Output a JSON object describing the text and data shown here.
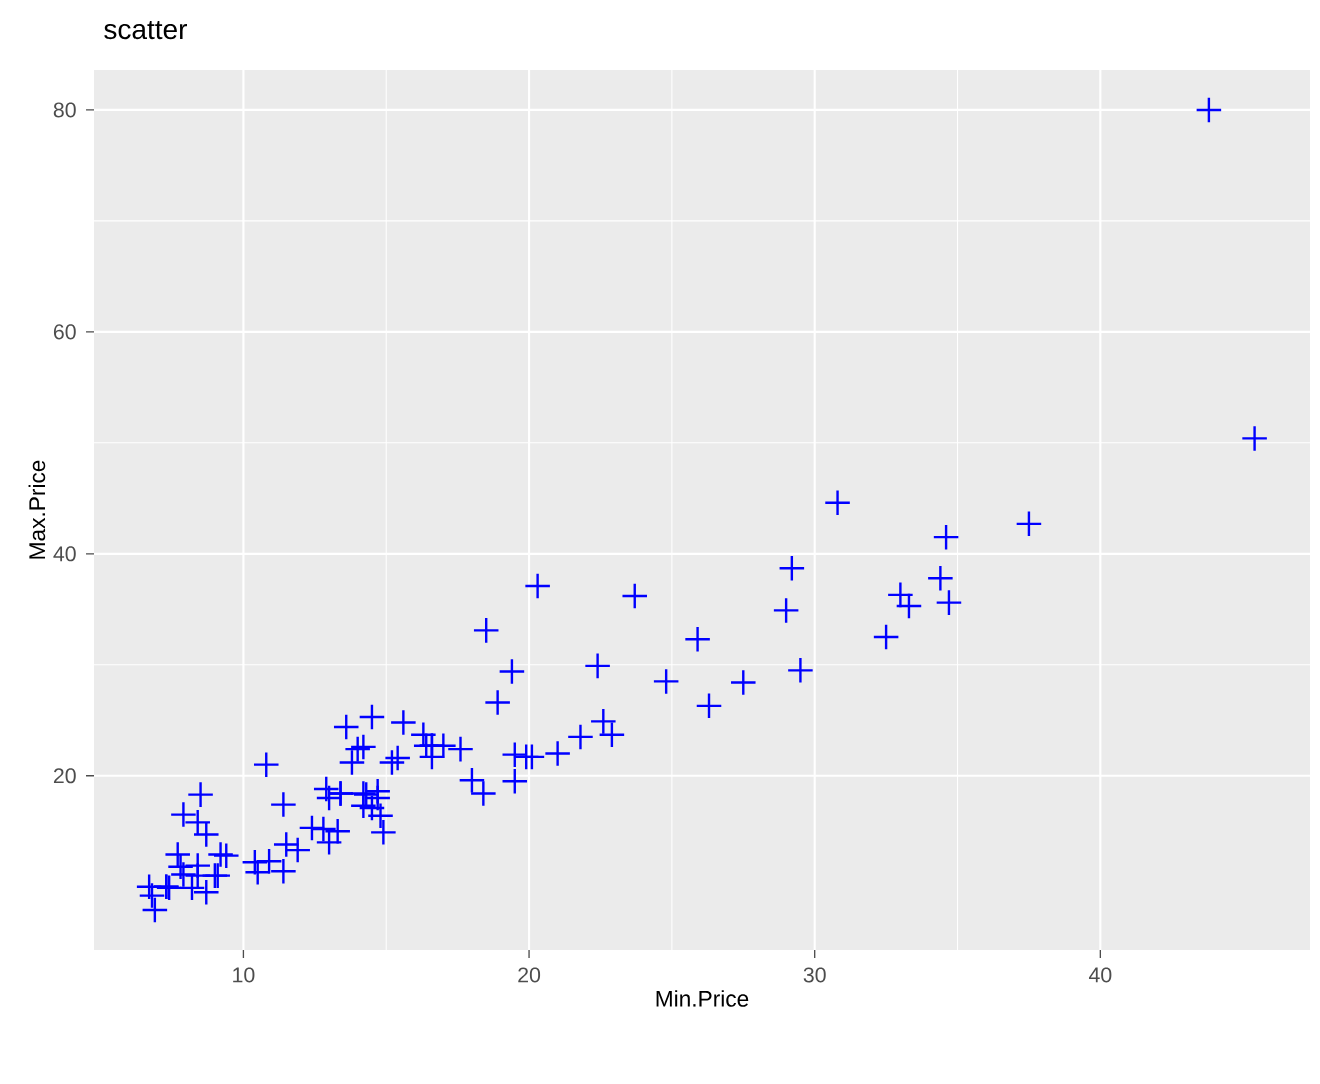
{
  "chart_data": {
    "type": "scatter",
    "title": "scatter",
    "xlabel": "Min.Price",
    "ylabel": "Max.Price",
    "x": [
      12.9,
      29.2,
      25.9,
      30.8,
      23.7,
      14.2,
      19.9,
      22.6,
      26.3,
      33.0,
      37.5,
      8.5,
      11.4,
      13.4,
      13.4,
      14.7,
      14.7,
      18.0,
      34.6,
      18.4,
      14.5,
      29.5,
      7.9,
      8.4,
      11.9,
      13.6,
      14.8,
      18.5,
      7.9,
      16.4,
      6.9,
      8.4,
      10.4,
      10.8,
      12.8,
      14.5,
      15.6,
      20.1,
      6.7,
      11.5,
      17.0,
      8.4,
      13.8,
      6.8,
      9.0,
      9.1,
      12.4,
      45.4,
      27.5,
      34.7,
      33.3,
      34.4,
      7.4,
      10.9,
      14.3,
      16.6,
      32.5,
      29.0,
      43.8,
      13.3,
      14.9,
      7.7,
      22.4,
      8.7,
      13.0,
      16.6,
      21.0,
      13.0,
      14.2,
      19.5,
      19.5,
      11.4,
      8.2,
      9.4,
      14.0,
      15.4,
      19.4,
      20.3,
      9.2,
      7.3,
      10.5,
      16.3,
      7.3,
      7.8,
      14.2,
      15.2,
      18.9,
      8.7,
      16.6,
      17.6,
      22.9,
      21.8,
      24.8
    ],
    "values": [
      18.8,
      38.7,
      32.3,
      44.6,
      36.2,
      17.3,
      21.7,
      24.9,
      26.3,
      36.3,
      42.7,
      18.3,
      11.4,
      18.4,
      18.4,
      18.0,
      18.6,
      19.6,
      41.5,
      18.4,
      17.1,
      29.5,
      11.1,
      11.0,
      13.3,
      24.4,
      16.4,
      33.1,
      16.5,
      22.7,
      7.9,
      11.9,
      12.2,
      21.0,
      15.2,
      25.3,
      24.8,
      21.7,
      10.0,
      13.8,
      22.7,
      15.8,
      21.2,
      9.2,
      11.0,
      11.0,
      15.3,
      50.4,
      28.4,
      35.6,
      35.3,
      37.8,
      9.9,
      12.3,
      18.3,
      22.7,
      32.5,
      34.9,
      80.0,
      15.0,
      14.9,
      12.9,
      29.9,
      14.7,
      18.0,
      21.7,
      22.0,
      14.0,
      18.4,
      19.5,
      21.9,
      17.4,
      9.9,
      12.8,
      22.4,
      21.6,
      29.4,
      37.1,
      12.9,
      10.0,
      11.3,
      23.7,
      10.0,
      11.8,
      22.6,
      21.2,
      26.6,
      9.5,
      22.7,
      22.4,
      23.7,
      23.5,
      28.5
    ],
    "color": "#0000ff",
    "marker": "cross",
    "xlim": [
      4.77,
      47.34
    ],
    "ylim": [
      4.3,
      83.6
    ],
    "xticks": [
      10,
      20,
      30,
      40
    ],
    "yticks": [
      20,
      40,
      60,
      80
    ],
    "grid": true
  }
}
